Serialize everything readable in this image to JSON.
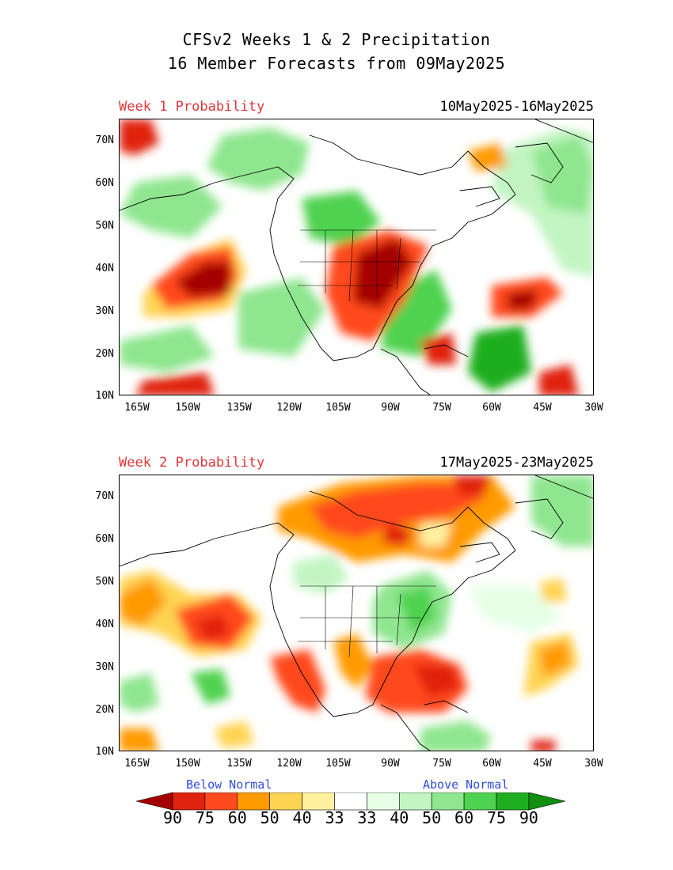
{
  "title": {
    "line1": "CFSv2 Weeks 1 & 2 Precipitation",
    "line2": "16 Member Forecasts from 09May2025"
  },
  "panels": [
    {
      "label": "Week 1 Probability",
      "dates": "10May2025-16May2025",
      "lat_labels": [
        "70N",
        "60N",
        "50N",
        "40N",
        "30N",
        "20N",
        "10N"
      ],
      "lon_labels": [
        "165W",
        "150W",
        "135W",
        "120W",
        "105W",
        "90W",
        "75W",
        "60W",
        "45W",
        "30W"
      ]
    },
    {
      "label": "Week 2 Probability",
      "dates": "17May2025-23May2025",
      "lat_labels": [
        "70N",
        "60N",
        "50N",
        "40N",
        "30N",
        "20N",
        "10N"
      ],
      "lon_labels": [
        "165W",
        "150W",
        "135W",
        "120W",
        "105W",
        "90W",
        "75W",
        "60W",
        "45W",
        "30W"
      ]
    }
  ],
  "legend": {
    "below_label": "Below Normal",
    "above_label": "Above Normal",
    "values": [
      "90",
      "75",
      "60",
      "50",
      "40",
      "33",
      "33",
      "40",
      "50",
      "60",
      "75",
      "90"
    ],
    "colors": [
      "#a50000",
      "#e0230f",
      "#ff4a1e",
      "#ff9a00",
      "#ffd452",
      "#fff1a0",
      "#ffffff",
      "#e6ffe6",
      "#c2f5c2",
      "#8fe68f",
      "#4fd24f",
      "#1fae1f",
      "#108f10"
    ]
  }
}
